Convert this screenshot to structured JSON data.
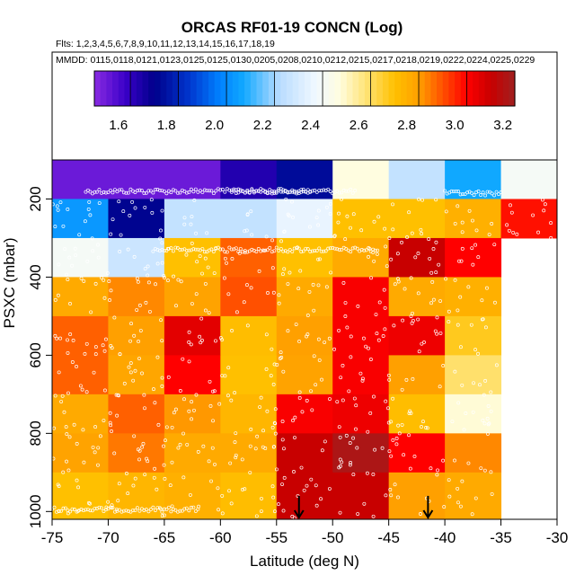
{
  "chart_data": {
    "type": "heatmap",
    "title": "ORCAS RF01-19 CONCN (Log)",
    "subtitle_flights": "Flts: 1,2,3,4,5,6,7,8,9,10,11,12,13,14,15,16,17,18,19",
    "subtitle_dates": "MMDD: 0115,0118,0121,0123,0125,0125,0130,0205,0208,0210,0212,0215,0217,0218,0219,0222,0224,0225,0229",
    "xlabel": "Latitude (deg N)",
    "ylabel": "PSXC (mbar)",
    "xlim": [
      -75,
      -30
    ],
    "ylim": [
      1020,
      100
    ],
    "x_ticks": [
      -75,
      -70,
      -65,
      -60,
      -55,
      -50,
      -45,
      -40,
      -35,
      -30
    ],
    "y_ticks": [
      200,
      400,
      600,
      800,
      1000
    ],
    "colorbar": {
      "range": [
        1.5,
        3.25
      ],
      "ticks": [
        1.6,
        1.8,
        2.0,
        2.2,
        2.4,
        2.6,
        2.8,
        3.0,
        3.2
      ],
      "stops": [
        {
          "v": 1.5,
          "color": "#8a2be2"
        },
        {
          "v": 1.63,
          "color": "#3a00c8"
        },
        {
          "v": 1.75,
          "color": "#00008b"
        },
        {
          "v": 1.9,
          "color": "#0038d0"
        },
        {
          "v": 2.02,
          "color": "#0080ff"
        },
        {
          "v": 2.12,
          "color": "#10a8ff"
        },
        {
          "v": 2.27,
          "color": "#b8dcff"
        },
        {
          "v": 2.42,
          "color": "#f0f8ff"
        },
        {
          "v": 2.52,
          "color": "#fffde0"
        },
        {
          "v": 2.62,
          "color": "#ffe680"
        },
        {
          "v": 2.75,
          "color": "#ffc000"
        },
        {
          "v": 2.85,
          "color": "#ffa000"
        },
        {
          "v": 2.95,
          "color": "#ff5000"
        },
        {
          "v": 3.05,
          "color": "#ff0000"
        },
        {
          "v": 3.15,
          "color": "#c80000"
        },
        {
          "v": 3.25,
          "color": "#a02020"
        }
      ]
    },
    "cells": [
      {
        "x0": -75,
        "x1": -70,
        "y0": 100,
        "y1": 200,
        "v": 1.55
      },
      {
        "x0": -70,
        "x1": -65,
        "y0": 100,
        "y1": 200,
        "v": 1.55
      },
      {
        "x0": -65,
        "x1": -60,
        "y0": 100,
        "y1": 200,
        "v": 1.55
      },
      {
        "x0": -60,
        "x1": -55,
        "y0": 100,
        "y1": 200,
        "v": 1.68
      },
      {
        "x0": -55,
        "x1": -50,
        "y0": 100,
        "y1": 200,
        "v": 1.78
      },
      {
        "x0": -50,
        "x1": -45,
        "y0": 100,
        "y1": 200,
        "v": 2.52
      },
      {
        "x0": -45,
        "x1": -40,
        "y0": 100,
        "y1": 200,
        "v": 2.3
      },
      {
        "x0": -40,
        "x1": -35,
        "y0": 100,
        "y1": 200,
        "v": 2.12
      },
      {
        "x0": -35,
        "x1": -30,
        "y0": 100,
        "y1": 200,
        "v": 2.45
      },
      {
        "x0": -75,
        "x1": -70,
        "y0": 200,
        "y1": 300,
        "v": 2.08
      },
      {
        "x0": -70,
        "x1": -65,
        "y0": 200,
        "y1": 300,
        "v": 1.76
      },
      {
        "x0": -65,
        "x1": -60,
        "y0": 200,
        "y1": 300,
        "v": 2.3
      },
      {
        "x0": -60,
        "x1": -55,
        "y0": 200,
        "y1": 300,
        "v": 2.3
      },
      {
        "x0": -55,
        "x1": -50,
        "y0": 200,
        "y1": 300,
        "v": 2.4
      },
      {
        "x0": -50,
        "x1": -45,
        "y0": 200,
        "y1": 300,
        "v": 2.75
      },
      {
        "x0": -45,
        "x1": -40,
        "y0": 200,
        "y1": 300,
        "v": 2.75
      },
      {
        "x0": -40,
        "x1": -35,
        "y0": 200,
        "y1": 300,
        "v": 2.8
      },
      {
        "x0": -35,
        "x1": -30,
        "y0": 200,
        "y1": 300,
        "v": 3.03
      },
      {
        "x0": -75,
        "x1": -70,
        "y0": 300,
        "y1": 400,
        "v": 2.45
      },
      {
        "x0": -70,
        "x1": -65,
        "y0": 300,
        "y1": 400,
        "v": 2.32
      },
      {
        "x0": -65,
        "x1": -60,
        "y0": 300,
        "y1": 400,
        "v": 2.75
      },
      {
        "x0": -60,
        "x1": -55,
        "y0": 300,
        "y1": 400,
        "v": 2.93
      },
      {
        "x0": -55,
        "x1": -50,
        "y0": 300,
        "y1": 400,
        "v": 2.75
      },
      {
        "x0": -50,
        "x1": -45,
        "y0": 300,
        "y1": 400,
        "v": 2.82
      },
      {
        "x0": -45,
        "x1": -40,
        "y0": 300,
        "y1": 400,
        "v": 3.15
      },
      {
        "x0": -40,
        "x1": -35,
        "y0": 300,
        "y1": 400,
        "v": 3.05
      },
      {
        "x0": -75,
        "x1": -70,
        "y0": 400,
        "y1": 500,
        "v": 2.82
      },
      {
        "x0": -70,
        "x1": -65,
        "y0": 400,
        "y1": 500,
        "v": 2.88
      },
      {
        "x0": -65,
        "x1": -60,
        "y0": 400,
        "y1": 500,
        "v": 2.84
      },
      {
        "x0": -60,
        "x1": -55,
        "y0": 400,
        "y1": 500,
        "v": 2.95
      },
      {
        "x0": -55,
        "x1": -50,
        "y0": 400,
        "y1": 500,
        "v": 2.82
      },
      {
        "x0": -50,
        "x1": -45,
        "y0": 400,
        "y1": 500,
        "v": 3.06
      },
      {
        "x0": -45,
        "x1": -40,
        "y0": 400,
        "y1": 500,
        "v": 2.82
      },
      {
        "x0": -40,
        "x1": -35,
        "y0": 400,
        "y1": 500,
        "v": 2.8
      },
      {
        "x0": -75,
        "x1": -70,
        "y0": 500,
        "y1": 600,
        "v": 2.93
      },
      {
        "x0": -70,
        "x1": -65,
        "y0": 500,
        "y1": 600,
        "v": 2.85
      },
      {
        "x0": -65,
        "x1": -60,
        "y0": 500,
        "y1": 600,
        "v": 3.1
      },
      {
        "x0": -60,
        "x1": -55,
        "y0": 500,
        "y1": 600,
        "v": 2.76
      },
      {
        "x0": -55,
        "x1": -50,
        "y0": 500,
        "y1": 600,
        "v": 2.85
      },
      {
        "x0": -50,
        "x1": -45,
        "y0": 500,
        "y1": 600,
        "v": 3.06
      },
      {
        "x0": -45,
        "x1": -40,
        "y0": 500,
        "y1": 600,
        "v": 3.08
      },
      {
        "x0": -40,
        "x1": -35,
        "y0": 500,
        "y1": 600,
        "v": 2.72
      },
      {
        "x0": -75,
        "x1": -70,
        "y0": 600,
        "y1": 700,
        "v": 2.93
      },
      {
        "x0": -70,
        "x1": -65,
        "y0": 600,
        "y1": 700,
        "v": 2.83
      },
      {
        "x0": -65,
        "x1": -60,
        "y0": 600,
        "y1": 700,
        "v": 3.05
      },
      {
        "x0": -60,
        "x1": -55,
        "y0": 600,
        "y1": 700,
        "v": 2.75
      },
      {
        "x0": -55,
        "x1": -50,
        "y0": 600,
        "y1": 700,
        "v": 2.84
      },
      {
        "x0": -50,
        "x1": -45,
        "y0": 600,
        "y1": 700,
        "v": 3.06
      },
      {
        "x0": -45,
        "x1": -40,
        "y0": 600,
        "y1": 700,
        "v": 2.85
      },
      {
        "x0": -40,
        "x1": -35,
        "y0": 600,
        "y1": 700,
        "v": 2.64
      },
      {
        "x0": -75,
        "x1": -70,
        "y0": 700,
        "y1": 800,
        "v": 2.82
      },
      {
        "x0": -70,
        "x1": -65,
        "y0": 700,
        "y1": 800,
        "v": 2.93
      },
      {
        "x0": -65,
        "x1": -60,
        "y0": 700,
        "y1": 800,
        "v": 2.86
      },
      {
        "x0": -60,
        "x1": -55,
        "y0": 700,
        "y1": 800,
        "v": 2.78
      },
      {
        "x0": -55,
        "x1": -50,
        "y0": 700,
        "y1": 800,
        "v": 3.06
      },
      {
        "x0": -50,
        "x1": -45,
        "y0": 700,
        "y1": 800,
        "v": 3.08
      },
      {
        "x0": -45,
        "x1": -40,
        "y0": 700,
        "y1": 800,
        "v": 2.76
      },
      {
        "x0": -40,
        "x1": -35,
        "y0": 700,
        "y1": 800,
        "v": 2.53
      },
      {
        "x0": -75,
        "x1": -70,
        "y0": 800,
        "y1": 900,
        "v": 2.84
      },
      {
        "x0": -70,
        "x1": -65,
        "y0": 800,
        "y1": 900,
        "v": 2.9
      },
      {
        "x0": -65,
        "x1": -60,
        "y0": 800,
        "y1": 900,
        "v": 2.82
      },
      {
        "x0": -60,
        "x1": -55,
        "y0": 800,
        "y1": 900,
        "v": 2.82
      },
      {
        "x0": -55,
        "x1": -50,
        "y0": 800,
        "y1": 900,
        "v": 3.15
      },
      {
        "x0": -50,
        "x1": -45,
        "y0": 800,
        "y1": 900,
        "v": 3.22
      },
      {
        "x0": -45,
        "x1": -40,
        "y0": 800,
        "y1": 900,
        "v": 3.05
      },
      {
        "x0": -40,
        "x1": -35,
        "y0": 800,
        "y1": 900,
        "v": 2.88
      },
      {
        "x0": -75,
        "x1": -70,
        "y0": 900,
        "y1": 1020,
        "v": 2.75
      },
      {
        "x0": -70,
        "x1": -65,
        "y0": 900,
        "y1": 1020,
        "v": 2.78
      },
      {
        "x0": -65,
        "x1": -60,
        "y0": 900,
        "y1": 1020,
        "v": 2.8
      },
      {
        "x0": -60,
        "x1": -55,
        "y0": 900,
        "y1": 1020,
        "v": 2.76
      },
      {
        "x0": -55,
        "x1": -50,
        "y0": 900,
        "y1": 1020,
        "v": 3.15
      },
      {
        "x0": -50,
        "x1": -45,
        "y0": 900,
        "y1": 1020,
        "v": 3.15
      },
      {
        "x0": -45,
        "x1": -40,
        "y0": 900,
        "y1": 1020,
        "v": 2.85
      },
      {
        "x0": -40,
        "x1": -35,
        "y0": 900,
        "y1": 1020,
        "v": 2.82
      }
    ],
    "arrows": [
      {
        "lat": -53,
        "p_top": 960,
        "p_bottom": 1020
      },
      {
        "lat": -41.5,
        "p_top": 960,
        "p_bottom": 1020
      }
    ],
    "sample_tracks": [
      {
        "lat0": -72,
        "lat1": -52,
        "p": 180
      },
      {
        "lat0": -59,
        "lat1": -48,
        "p": 180
      },
      {
        "lat0": -40,
        "lat1": -35,
        "p": 185
      },
      {
        "lat0": -66,
        "lat1": -46,
        "p": 330
      },
      {
        "lat0": -76,
        "lat1": -62,
        "p": 995
      }
    ]
  }
}
